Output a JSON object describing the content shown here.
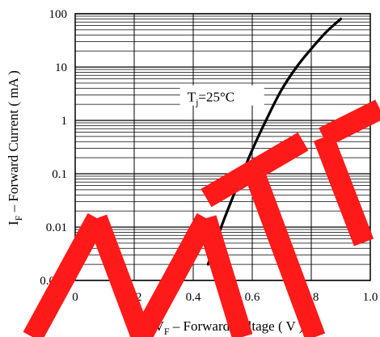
{
  "chart_data": {
    "type": "line",
    "xlabel": {
      "main": "V",
      "sub": "F",
      "rest": " – Forward Voltage ( V )"
    },
    "ylabel": {
      "main": "I",
      "sub": "F",
      "rest": " – Forward Current ( mA )"
    },
    "xlim": [
      0,
      1.0
    ],
    "ylim": [
      0.001,
      100
    ],
    "yscale": "log",
    "grid": true,
    "x_ticks": [
      {
        "value": 0,
        "label": "0"
      },
      {
        "value": 0.2,
        "label": "0.2"
      },
      {
        "value": 0.4,
        "label": "0.4"
      },
      {
        "value": 0.6,
        "label": "0.6"
      },
      {
        "value": 0.8,
        "label": "0.8"
      },
      {
        "value": 1.0,
        "label": "1.0"
      }
    ],
    "y_ticks": [
      {
        "value": 0.001,
        "label": "0.001"
      },
      {
        "value": 0.01,
        "label": "0.01"
      },
      {
        "value": 0.1,
        "label": "0.1"
      },
      {
        "value": 1,
        "label": "1"
      },
      {
        "value": 10,
        "label": "10"
      },
      {
        "value": 100,
        "label": "100"
      }
    ],
    "annotation": {
      "main": "T",
      "sub": "j",
      "rest": "=25°C",
      "x": 0.38,
      "y": 2.7
    },
    "series": [
      {
        "points": [
          [
            0.45,
            0.002
          ],
          [
            0.5,
            0.012
          ],
          [
            0.55,
            0.06
          ],
          [
            0.6,
            0.28
          ],
          [
            0.65,
            1.1
          ],
          [
            0.7,
            3.8
          ],
          [
            0.75,
            10
          ],
          [
            0.8,
            22
          ],
          [
            0.85,
            45
          ],
          [
            0.9,
            80
          ]
        ]
      }
    ]
  },
  "watermark": {
    "text": "MTE",
    "color": "#ff1a1a"
  }
}
